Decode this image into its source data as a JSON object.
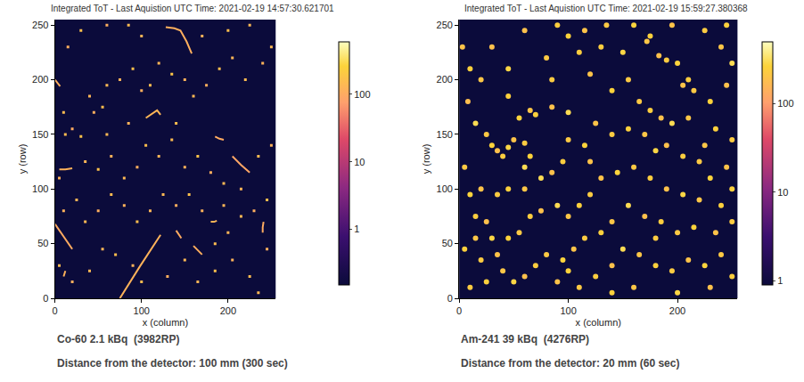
{
  "chart_data": [
    {
      "type": "heatmap",
      "title": "Integrated ToT - Last Aquistion UTC Time: 2021-02-19 14:57:30.621701",
      "x_label": "x (column)",
      "y_label": "y (row)",
      "xlim": [
        0,
        255
      ],
      "ylim": [
        0,
        255
      ],
      "xticks": [
        0,
        100,
        200
      ],
      "yticks": [
        0,
        50,
        100,
        150,
        200,
        250
      ],
      "caption": [
        "Co-60 2.1 kBq  (3982RP)",
        "Distance from the detector: 100 mm (300 sec)"
      ],
      "colorbar": {
        "range": [
          0.15,
          600
        ],
        "ticks": [
          1,
          10,
          100
        ],
        "log": true
      },
      "cells": [
        [
          5,
          110,
          120
        ],
        [
          12,
          150,
          150
        ],
        [
          20,
          155,
          100
        ],
        [
          30,
          148,
          180
        ],
        [
          40,
          185,
          130
        ],
        [
          45,
          170,
          110
        ],
        [
          55,
          175,
          160
        ],
        [
          60,
          195,
          140
        ],
        [
          75,
          200,
          120
        ],
        [
          90,
          210,
          170
        ],
        [
          100,
          190,
          110
        ],
        [
          110,
          195,
          150
        ],
        [
          120,
          215,
          130
        ],
        [
          135,
          205,
          190
        ],
        [
          150,
          200,
          120
        ],
        [
          160,
          185,
          140
        ],
        [
          175,
          195,
          110
        ],
        [
          190,
          210,
          160
        ],
        [
          205,
          220,
          130
        ],
        [
          220,
          200,
          150
        ],
        [
          240,
          215,
          120
        ],
        [
          250,
          230,
          140
        ],
        [
          30,
          245,
          170
        ],
        [
          60,
          250,
          110
        ],
        [
          85,
          250,
          150
        ],
        [
          100,
          240,
          130
        ],
        [
          170,
          240,
          120
        ],
        [
          200,
          245,
          160
        ],
        [
          225,
          250,
          140
        ],
        [
          15,
          230,
          110
        ],
        [
          10,
          170,
          150
        ],
        [
          35,
          125,
          130
        ],
        [
          50,
          118,
          170
        ],
        [
          65,
          130,
          120
        ],
        [
          80,
          110,
          140
        ],
        [
          95,
          120,
          110
        ],
        [
          105,
          140,
          160
        ],
        [
          120,
          130,
          130
        ],
        [
          135,
          145,
          150
        ],
        [
          150,
          120,
          120
        ],
        [
          165,
          130,
          180
        ],
        [
          180,
          115,
          110
        ],
        [
          195,
          105,
          140
        ],
        [
          215,
          100,
          130
        ],
        [
          235,
          130,
          150
        ],
        [
          250,
          140,
          120
        ],
        [
          245,
          90,
          160
        ],
        [
          230,
          80,
          110
        ],
        [
          215,
          75,
          140
        ],
        [
          200,
          60,
          130
        ],
        [
          185,
          50,
          150
        ],
        [
          170,
          80,
          120
        ],
        [
          155,
          95,
          170
        ],
        [
          140,
          85,
          110
        ],
        [
          125,
          95,
          140
        ],
        [
          110,
          80,
          130
        ],
        [
          95,
          70,
          160
        ],
        [
          80,
          85,
          120
        ],
        [
          65,
          95,
          150
        ],
        [
          50,
          80,
          110
        ],
        [
          35,
          70,
          140
        ],
        [
          25,
          90,
          130
        ],
        [
          10,
          80,
          120
        ],
        [
          5,
          30,
          150
        ],
        [
          20,
          15,
          110
        ],
        [
          40,
          25,
          140
        ],
        [
          55,
          45,
          130
        ],
        [
          70,
          40,
          160
        ],
        [
          90,
          30,
          120
        ],
        [
          100,
          15,
          150
        ],
        [
          130,
          20,
          110
        ],
        [
          150,
          35,
          140
        ],
        [
          165,
          15,
          130
        ],
        [
          185,
          25,
          170
        ],
        [
          205,
          35,
          120
        ],
        [
          225,
          20,
          150
        ],
        [
          245,
          45,
          110
        ],
        [
          235,
          5,
          140
        ],
        [
          195,
          85,
          130
        ],
        [
          140,
          160,
          160
        ],
        [
          85,
          160,
          120
        ],
        [
          60,
          150,
          140
        ]
      ],
      "tracks": [
        {
          "x": [
            75,
            98,
            122
          ],
          "y": [
            0,
            29,
            58
          ],
          "value": 120
        },
        {
          "x": [
            0,
            10,
            20
          ],
          "y": [
            68,
            56,
            45
          ],
          "value": 100
        },
        {
          "x": [
            128,
            138,
            145,
            152,
            158
          ],
          "y": [
            248,
            247,
            245,
            235,
            224
          ],
          "value": 110
        },
        {
          "x": [
            105,
            112,
            118,
            122
          ],
          "y": [
            165,
            169,
            172,
            168
          ],
          "value": 130
        },
        {
          "x": [
            185,
            190,
            195
          ],
          "y": [
            148,
            146,
            145
          ],
          "value": 100
        },
        {
          "x": [
            205,
            215,
            225
          ],
          "y": [
            130,
            122,
            115
          ],
          "value": 90
        },
        {
          "x": [
            0,
            3,
            6
          ],
          "y": [
            200,
            197,
            194
          ],
          "value": 110
        },
        {
          "x": [
            5,
            12,
            20
          ],
          "y": [
            118,
            118,
            119
          ],
          "value": 120
        },
        {
          "x": [
            140,
            143,
            146
          ],
          "y": [
            62,
            58,
            55
          ],
          "value": 100
        },
        {
          "x": [
            160,
            165,
            170
          ],
          "y": [
            48,
            44,
            40
          ],
          "value": 110
        },
        {
          "x": [
            180,
            184,
            187
          ],
          "y": [
            70,
            70,
            71
          ],
          "value": 130
        },
        {
          "x": [
            240,
            240,
            241
          ],
          "y": [
            60,
            65,
            70
          ],
          "value": 100
        },
        {
          "x": [
            10,
            11,
            12
          ],
          "y": [
            20,
            22,
            25
          ],
          "value": 120
        }
      ]
    },
    {
      "type": "heatmap",
      "title": "Integrated ToT - Last Aquistion UTC Time: 2021-02-19 15:59:27.380368",
      "x_label": "x (column)",
      "y_label": "y (row)",
      "xlim": [
        0,
        255
      ],
      "ylim": [
        0,
        255
      ],
      "xticks": [
        0,
        100,
        200
      ],
      "yticks": [
        0,
        50,
        100,
        150,
        200,
        250
      ],
      "caption": [
        "Am-241 39 kBq  (4276RP)",
        "Distance from the detector: 20 mm (60 sec)"
      ],
      "colorbar": {
        "range": [
          0.9,
          500
        ],
        "ticks": [
          1,
          10,
          100
        ],
        "log": true
      },
      "cells": [
        [
          3,
          230,
          200
        ],
        [
          10,
          210,
          250
        ],
        [
          8,
          180,
          180
        ],
        [
          15,
          160,
          300
        ],
        [
          25,
          150,
          220
        ],
        [
          30,
          140,
          260
        ],
        [
          35,
          135,
          190
        ],
        [
          40,
          130,
          240
        ],
        [
          45,
          138,
          280
        ],
        [
          50,
          145,
          200
        ],
        [
          60,
          142,
          230
        ],
        [
          55,
          165,
          270
        ],
        [
          65,
          172,
          210
        ],
        [
          70,
          168,
          250
        ],
        [
          85,
          175,
          190
        ],
        [
          100,
          170,
          300
        ],
        [
          80,
          220,
          220
        ],
        [
          100,
          240,
          260
        ],
        [
          115,
          245,
          200
        ],
        [
          130,
          230,
          240
        ],
        [
          150,
          225,
          280
        ],
        [
          172,
          235,
          210
        ],
        [
          175,
          240,
          250
        ],
        [
          183,
          222,
          190
        ],
        [
          190,
          218,
          230
        ],
        [
          200,
          215,
          270
        ],
        [
          205,
          195,
          200
        ],
        [
          210,
          200,
          240
        ],
        [
          215,
          190,
          220
        ],
        [
          230,
          180,
          260
        ],
        [
          245,
          195,
          190
        ],
        [
          250,
          215,
          300
        ],
        [
          240,
          230,
          210
        ],
        [
          245,
          250,
          250
        ],
        [
          225,
          245,
          230
        ],
        [
          195,
          250,
          200
        ],
        [
          160,
          250,
          270
        ],
        [
          135,
          250,
          220
        ],
        [
          90,
          250,
          240
        ],
        [
          60,
          245,
          190
        ],
        [
          45,
          210,
          280
        ],
        [
          20,
          200,
          210
        ],
        [
          45,
          185,
          250
        ],
        [
          85,
          200,
          230
        ],
        [
          120,
          205,
          200
        ],
        [
          140,
          190,
          260
        ],
        [
          165,
          180,
          220
        ],
        [
          175,
          172,
          240
        ],
        [
          185,
          165,
          190
        ],
        [
          195,
          160,
          300
        ],
        [
          210,
          165,
          210
        ],
        [
          235,
          155,
          250
        ],
        [
          250,
          145,
          230
        ],
        [
          245,
          120,
          200
        ],
        [
          230,
          110,
          270
        ],
        [
          220,
          125,
          220
        ],
        [
          205,
          130,
          240
        ],
        [
          190,
          140,
          190
        ],
        [
          180,
          135,
          280
        ],
        [
          170,
          150,
          210
        ],
        [
          155,
          155,
          250
        ],
        [
          140,
          150,
          230
        ],
        [
          125,
          160,
          200
        ],
        [
          115,
          140,
          260
        ],
        [
          100,
          145,
          220
        ],
        [
          95,
          125,
          240
        ],
        [
          85,
          115,
          190
        ],
        [
          75,
          110,
          300
        ],
        [
          60,
          100,
          210
        ],
        [
          45,
          100,
          250
        ],
        [
          35,
          95,
          230
        ],
        [
          20,
          100,
          200
        ],
        [
          10,
          95,
          270
        ],
        [
          5,
          120,
          220
        ],
        [
          15,
          75,
          240
        ],
        [
          25,
          70,
          190
        ],
        [
          30,
          55,
          280
        ],
        [
          15,
          55,
          210
        ],
        [
          5,
          45,
          250
        ],
        [
          20,
          35,
          230
        ],
        [
          35,
          40,
          200
        ],
        [
          45,
          55,
          260
        ],
        [
          55,
          60,
          220
        ],
        [
          65,
          75,
          240
        ],
        [
          75,
          80,
          190
        ],
        [
          90,
          85,
          300
        ],
        [
          100,
          75,
          210
        ],
        [
          110,
          85,
          250
        ],
        [
          120,
          95,
          230
        ],
        [
          130,
          110,
          200
        ],
        [
          145,
          115,
          270
        ],
        [
          160,
          120,
          220
        ],
        [
          175,
          110,
          240
        ],
        [
          190,
          100,
          190
        ],
        [
          205,
          95,
          280
        ],
        [
          220,
          90,
          210
        ],
        [
          240,
          85,
          250
        ],
        [
          250,
          70,
          230
        ],
        [
          235,
          60,
          200
        ],
        [
          215,
          65,
          260
        ],
        [
          200,
          60,
          220
        ],
        [
          185,
          70,
          240
        ],
        [
          170,
          75,
          190
        ],
        [
          155,
          85,
          300
        ],
        [
          140,
          70,
          210
        ],
        [
          130,
          60,
          250
        ],
        [
          115,
          55,
          230
        ],
        [
          105,
          45,
          200
        ],
        [
          95,
          35,
          270
        ],
        [
          80,
          40,
          220
        ],
        [
          70,
          30,
          240
        ],
        [
          60,
          20,
          190
        ],
        [
          50,
          15,
          280
        ],
        [
          40,
          25,
          210
        ],
        [
          25,
          15,
          250
        ],
        [
          10,
          10,
          230
        ],
        [
          90,
          15,
          200
        ],
        [
          100,
          25,
          260
        ],
        [
          110,
          10,
          220
        ],
        [
          125,
          20,
          240
        ],
        [
          140,
          30,
          190
        ],
        [
          150,
          45,
          300
        ],
        [
          165,
          40,
          210
        ],
        [
          180,
          30,
          250
        ],
        [
          195,
          25,
          230
        ],
        [
          210,
          35,
          200
        ],
        [
          225,
          30,
          270
        ],
        [
          240,
          40,
          220
        ],
        [
          250,
          20,
          240
        ],
        [
          230,
          10,
          190
        ],
        [
          200,
          5,
          280
        ],
        [
          160,
          10,
          210
        ],
        [
          140,
          5,
          250
        ],
        [
          180,
          55,
          230
        ],
        [
          120,
          125,
          200
        ],
        [
          65,
          130,
          260
        ],
        [
          155,
          200,
          220
        ],
        [
          110,
          225,
          240
        ],
        [
          30,
          230,
          190
        ],
        [
          60,
          120,
          300
        ],
        [
          225,
          140,
          210
        ],
        [
          250,
          100,
          250
        ]
      ]
    }
  ]
}
